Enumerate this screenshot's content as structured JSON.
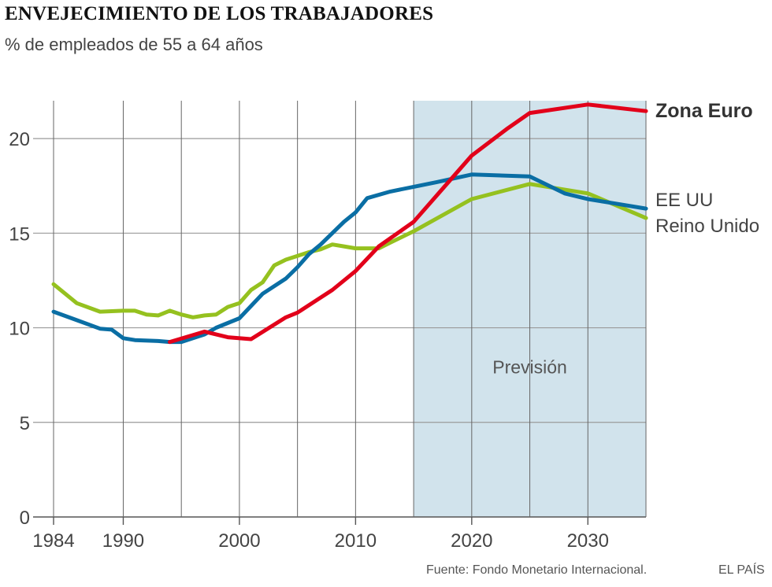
{
  "title": "ENVEJECIMIENTO DE LOS TRABAJADORES",
  "subtitle": "% de empleados de 55 a 64 años",
  "source": "Fuente: Fondo Monetario Internacional.",
  "brand": "EL PAÍS",
  "chart_data": {
    "type": "line",
    "title": "ENVEJECIMIENTO DE LOS TRABAJADORES",
    "subtitle": "% de empleados de 55 a 64 años",
    "xlim": [
      1984,
      2035
    ],
    "ylim": [
      0,
      22
    ],
    "x_ticks": [
      1984,
      1990,
      2000,
      2010,
      2020,
      2030
    ],
    "x_tick_labels": [
      "1984",
      "1990",
      "2000",
      "2010",
      "2020",
      "2030"
    ],
    "y_ticks": [
      0,
      5,
      10,
      15,
      20
    ],
    "y_tick_labels": [
      "0",
      "5",
      "10",
      "15",
      "20"
    ],
    "vertical_gridlines": [
      1984,
      1990,
      1995,
      2000,
      2005,
      2010,
      2015,
      2020,
      2025,
      2030,
      2035
    ],
    "forecast": {
      "label": "Previsión",
      "from": 2015,
      "to": 2035,
      "color": "#d1e3ec"
    },
    "series": [
      {
        "name": "Zona Euro",
        "color": "#e2001a",
        "bold": true,
        "points": [
          [
            1994,
            9.25
          ],
          [
            1997,
            9.8
          ],
          [
            1999,
            9.5
          ],
          [
            2001,
            9.4
          ],
          [
            2004,
            10.55
          ],
          [
            2005,
            10.8
          ],
          [
            2008,
            12.0
          ],
          [
            2010,
            13.0
          ],
          [
            2012,
            14.3
          ],
          [
            2015,
            15.6
          ],
          [
            2017,
            17.0
          ],
          [
            2020,
            19.1
          ],
          [
            2023,
            20.5
          ],
          [
            2025,
            21.35
          ],
          [
            2030,
            21.8
          ],
          [
            2035,
            21.45
          ]
        ]
      },
      {
        "name": "EE UU",
        "color": "#0a6ea4",
        "bold": false,
        "points": [
          [
            1984,
            10.85
          ],
          [
            1986,
            10.4
          ],
          [
            1988,
            9.95
          ],
          [
            1989,
            9.9
          ],
          [
            1990,
            9.45
          ],
          [
            1991,
            9.35
          ],
          [
            1993,
            9.3
          ],
          [
            1994,
            9.25
          ],
          [
            1995,
            9.25
          ],
          [
            1997,
            9.65
          ],
          [
            1998,
            10.0
          ],
          [
            2000,
            10.5
          ],
          [
            2002,
            11.8
          ],
          [
            2004,
            12.6
          ],
          [
            2005,
            13.2
          ],
          [
            2006,
            13.9
          ],
          [
            2007,
            14.4
          ],
          [
            2009,
            15.6
          ],
          [
            2010,
            16.1
          ],
          [
            2011,
            16.85
          ],
          [
            2013,
            17.2
          ],
          [
            2015,
            17.45
          ],
          [
            2017,
            17.7
          ],
          [
            2020,
            18.1
          ],
          [
            2025,
            18.0
          ],
          [
            2028,
            17.1
          ],
          [
            2030,
            16.8
          ],
          [
            2032,
            16.6
          ],
          [
            2035,
            16.3
          ]
        ]
      },
      {
        "name": "Reino Unido",
        "color": "#95c11f",
        "bold": false,
        "points": [
          [
            1984,
            12.3
          ],
          [
            1986,
            11.3
          ],
          [
            1988,
            10.85
          ],
          [
            1990,
            10.9
          ],
          [
            1991,
            10.9
          ],
          [
            1992,
            10.7
          ],
          [
            1993,
            10.65
          ],
          [
            1994,
            10.9
          ],
          [
            1995,
            10.7
          ],
          [
            1996,
            10.55
          ],
          [
            1997,
            10.65
          ],
          [
            1998,
            10.7
          ],
          [
            1999,
            11.1
          ],
          [
            2000,
            11.3
          ],
          [
            2001,
            12.0
          ],
          [
            2002,
            12.4
          ],
          [
            2003,
            13.3
          ],
          [
            2004,
            13.6
          ],
          [
            2005,
            13.8
          ],
          [
            2006,
            14.0
          ],
          [
            2007,
            14.15
          ],
          [
            2008,
            14.4
          ],
          [
            2009,
            14.3
          ],
          [
            2010,
            14.2
          ],
          [
            2012,
            14.2
          ],
          [
            2013,
            14.5
          ],
          [
            2015,
            15.1
          ],
          [
            2020,
            16.8
          ],
          [
            2025,
            17.6
          ],
          [
            2030,
            17.1
          ],
          [
            2035,
            15.8
          ]
        ]
      }
    ],
    "series_labels": [
      "Zona Euro",
      "EE UU",
      "Reino Unido"
    ]
  }
}
